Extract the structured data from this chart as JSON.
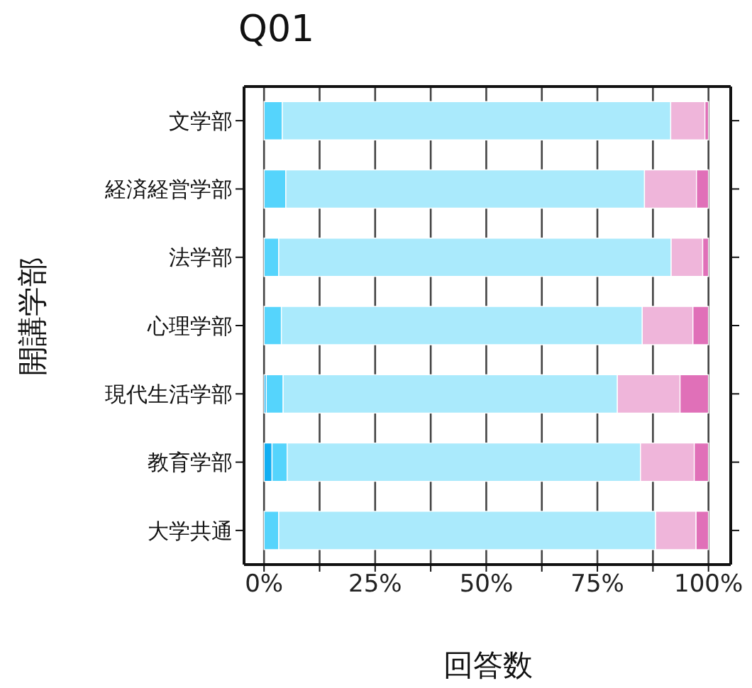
{
  "chart_data": {
    "type": "bar",
    "orientation": "horizontal",
    "stacked": true,
    "title": "Q01",
    "xlabel": "回答数",
    "ylabel": "開講学部",
    "categories": [
      "文学部",
      "経済経営学部",
      "法学部",
      "心理学部",
      "現代生活学部",
      "教育学部",
      "大学共通"
    ],
    "series": [
      {
        "color": "#11aef2",
        "values": [
          0,
          0,
          0,
          0,
          0.5,
          1.8,
          0
        ]
      },
      {
        "color": "#55d4fc",
        "values": [
          4.1,
          4.9,
          3.3,
          3.9,
          3.8,
          3.4,
          3.3
        ]
      },
      {
        "color": "#aaeafc",
        "values": [
          87.4,
          80.7,
          88.3,
          81.2,
          75.2,
          79.5,
          84.8
        ]
      },
      {
        "color": "#efb5da",
        "values": [
          7.7,
          11.7,
          7.1,
          11.4,
          14.1,
          12.1,
          9.1
        ]
      },
      {
        "color": "#e070b8",
        "values": [
          0.8,
          2.7,
          1.3,
          3.5,
          6.4,
          3.2,
          2.8
        ]
      }
    ],
    "xlim": [
      -4.5,
      105
    ],
    "xticks": [
      {
        "value": 0,
        "label": "0%"
      },
      {
        "value": 12.5,
        "label": null
      },
      {
        "value": 25,
        "label": "25%"
      },
      {
        "value": 37.5,
        "label": null
      },
      {
        "value": 50,
        "label": "50%"
      },
      {
        "value": 62.5,
        "label": null
      },
      {
        "value": 75,
        "label": "75%"
      },
      {
        "value": 87.5,
        "label": null
      },
      {
        "value": 100,
        "label": "100%"
      }
    ],
    "grid": "x",
    "legend": false
  }
}
